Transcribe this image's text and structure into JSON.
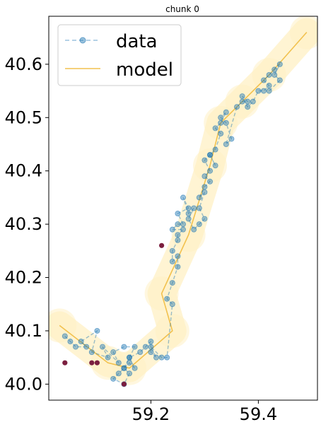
{
  "chart_data": {
    "type": "line",
    "title": "chunk 0",
    "xlabel": "",
    "ylabel": "",
    "xlim": [
      59.01,
      59.51
    ],
    "ylim": [
      39.97,
      40.69
    ],
    "xticks": [
      59.2,
      59.4
    ],
    "xtick_labels": [
      "59.2",
      "59.4"
    ],
    "yticks": [
      40.0,
      40.1,
      40.2,
      40.3,
      40.4,
      40.5,
      40.6
    ],
    "ytick_labels": [
      "40.0",
      "40.1",
      "40.2",
      "40.3",
      "40.4",
      "40.5",
      "40.6"
    ],
    "legend": {
      "position": "upper-left",
      "entries": [
        "data",
        "model"
      ]
    },
    "colors": {
      "data": "#1f77b4",
      "model": "#f2c14e",
      "band": "#fff0c4",
      "outlier": "#7b1f3f"
    },
    "series": [
      {
        "name": "data",
        "style": "dashed-with-markers",
        "x": [
          59.04,
          59.05,
          59.06,
          59.08,
          59.07,
          59.1,
          59.09,
          59.12,
          59.11,
          59.14,
          59.13,
          59.15,
          59.17,
          59.16,
          59.15,
          59.14,
          59.13,
          59.15,
          59.16,
          59.15,
          59.16,
          59.17,
          59.16,
          59.18,
          59.19,
          59.2,
          59.2,
          59.21,
          59.2,
          59.22,
          59.23,
          59.24,
          59.23,
          59.24,
          59.25,
          59.25,
          59.24,
          59.24,
          59.25,
          59.25,
          59.26,
          59.24,
          59.25,
          59.26,
          59.25,
          59.27,
          59.26,
          59.27,
          59.28,
          59.27,
          59.28,
          59.29,
          59.3,
          59.29,
          59.3,
          59.29,
          59.3,
          59.31,
          59.3,
          59.31,
          59.3,
          59.31,
          59.32,
          59.31,
          59.32,
          59.33,
          59.32,
          59.33,
          59.34,
          59.33,
          59.34,
          59.35,
          59.34,
          59.36,
          59.37,
          59.38,
          59.37,
          59.38,
          59.39,
          59.4,
          59.41,
          59.42,
          59.41,
          59.42,
          59.43,
          59.44,
          59.43,
          59.44,
          59.42
        ],
        "y": [
          40.09,
          40.08,
          40.07,
          40.07,
          40.08,
          40.1,
          40.06,
          40.05,
          40.07,
          40.04,
          40.06,
          40.07,
          40.07,
          40.05,
          40.03,
          40.02,
          40.01,
          40.0,
          40.02,
          40.03,
          40.04,
          40.03,
          40.05,
          40.06,
          40.07,
          40.08,
          40.06,
          40.05,
          40.07,
          40.05,
          40.05,
          40.15,
          40.16,
          40.19,
          40.22,
          40.24,
          40.23,
          40.25,
          40.27,
          40.28,
          40.29,
          40.29,
          40.3,
          40.3,
          40.32,
          40.33,
          40.35,
          40.32,
          40.33,
          40.31,
          40.29,
          40.3,
          40.31,
          40.33,
          40.36,
          40.35,
          40.37,
          40.38,
          40.39,
          40.4,
          40.42,
          40.43,
          40.41,
          40.43,
          40.44,
          40.47,
          40.48,
          40.49,
          40.51,
          40.5,
          40.49,
          40.46,
          40.45,
          40.52,
          40.53,
          40.53,
          40.54,
          40.52,
          40.53,
          40.55,
          40.55,
          40.56,
          40.57,
          40.58,
          40.59,
          40.6,
          40.58,
          40.57,
          40.55
        ]
      },
      {
        "name": "model",
        "style": "solid",
        "x": [
          59.03,
          59.12,
          59.16,
          59.24,
          59.22,
          59.27,
          59.31,
          59.33,
          59.37,
          59.42,
          59.49
        ],
        "y": [
          40.11,
          40.04,
          40.03,
          40.1,
          40.17,
          40.28,
          40.41,
          40.49,
          40.53,
          40.58,
          40.66
        ]
      },
      {
        "name": "",
        "style": "outlier-markers",
        "x": [
          59.04,
          59.09,
          59.1,
          59.15,
          59.22
        ],
        "y": [
          40.04,
          40.04,
          40.04,
          40.0,
          40.26
        ]
      }
    ]
  }
}
